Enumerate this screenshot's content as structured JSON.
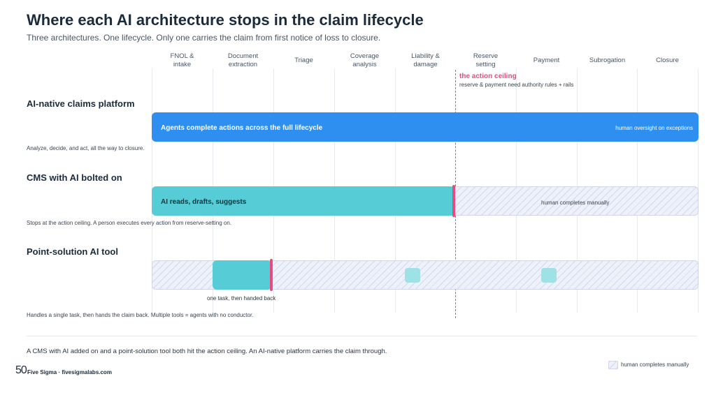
{
  "title": "Where each AI architecture stops in the claim lifecycle",
  "subtitle": "Three architectures. One lifecycle. Only one carries the claim from first notice of loss to closure.",
  "stages": [
    {
      "line1": "FNOL &",
      "line2": "intake"
    },
    {
      "line1": "Document",
      "line2": "extraction"
    },
    {
      "line1": "Triage",
      "line2": ""
    },
    {
      "line1": "Coverage",
      "line2": "analysis"
    },
    {
      "line1": "Liability &",
      "line2": "damage"
    },
    {
      "line1": "Reserve",
      "line2": "setting"
    },
    {
      "line1": "Payment",
      "line2": ""
    },
    {
      "line1": "Subrogation",
      "line2": ""
    },
    {
      "line1": "Closure",
      "line2": ""
    }
  ],
  "ceiling": {
    "label": "the action ceiling",
    "note": "reserve & payment need authority rules + rails",
    "color": "#e84b7d"
  },
  "rows": {
    "ai_native": {
      "title": "AI-native claims platform",
      "bar_label": "Agents complete actions across the full lifecycle",
      "bar_note": "human oversight on exceptions",
      "description": "Analyze, decide, and act, all the way to closure.",
      "color": "#2f8ff0"
    },
    "cms": {
      "title": "CMS with AI bolted on",
      "bar_label": "AI reads, drafts, suggests",
      "hatch_note": "human completes manually",
      "description": "Stops at the action ceiling. A person executes every action from reserve-setting on.",
      "color": "#55ccd6"
    },
    "point": {
      "title": "Point-solution AI tool",
      "task_note": "one task, then handed back",
      "description": "Handles a single task, then hands the claim back. Multiple tools = agents with no conductor.",
      "color": "#55ccd6"
    }
  },
  "footer": {
    "text": "A CMS with AI added on and a point-solution tool both hit the action ceiling. An AI-native platform carries the claim through.",
    "logo_mark": "50",
    "brand": "Five Sigma · fivesigmalabs.com",
    "legend_label": "human completes manually"
  }
}
